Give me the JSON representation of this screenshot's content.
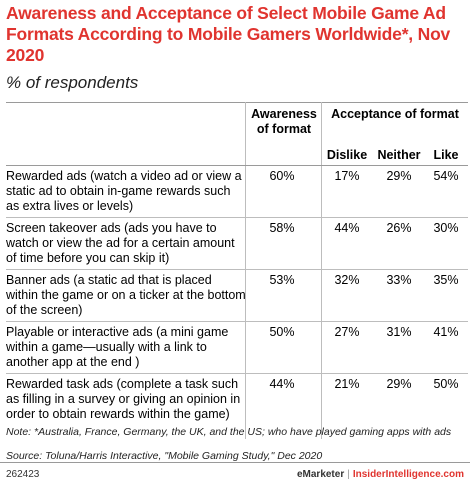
{
  "title": "Awareness and Acceptance of Select Mobile Game Ad Formats According to Mobile Gamers Worldwide*, Nov 2020",
  "subtitle": "% of respondents",
  "chart_data": {
    "type": "table",
    "columns": {
      "awareness": "Awareness of format",
      "acceptance_group": "Acceptance of format",
      "dislike": "Dislike",
      "neither": "Neither",
      "like": "Like"
    },
    "rows": [
      {
        "label": "Rewarded ads (watch a video ad or view a static ad to obtain in-game rewards such as extra lives or levels)",
        "awareness": "60%",
        "dislike": "17%",
        "neither": "29%",
        "like": "54%"
      },
      {
        "label": "Screen takeover ads (ads you have to watch or view the ad for a certain amount of time before you can skip it)",
        "awareness": "58%",
        "dislike": "44%",
        "neither": "26%",
        "like": "30%"
      },
      {
        "label": "Banner ads (a static ad that is placed within the game or on a ticker at the bottom of the screen)",
        "awareness": "53%",
        "dislike": "32%",
        "neither": "33%",
        "like": "35%"
      },
      {
        "label": "Playable or interactive ads (a mini game within a game—usually with a link to another app at the end )",
        "awareness": "50%",
        "dislike": "27%",
        "neither": "31%",
        "like": "41%"
      },
      {
        "label": "Rewarded task ads (complete a task such as filling in a survey or giving an opinion in order to obtain rewards within the game)",
        "awareness": "44%",
        "dislike": "21%",
        "neither": "29%",
        "like": "50%"
      }
    ]
  },
  "note": "Note: *Australia, France, Germany, the UK, and the US; who have played gaming apps with ads",
  "source": "Source: Toluna/Harris Interactive, \"Mobile Gaming Study,\" Dec 2020",
  "footer": {
    "id": "262423",
    "brand1": "eMarketer",
    "separator": "|",
    "brand2": "InsiderIntelligence.com"
  },
  "colors": {
    "title": "#e0342f",
    "rules": "#bdbdbd"
  }
}
